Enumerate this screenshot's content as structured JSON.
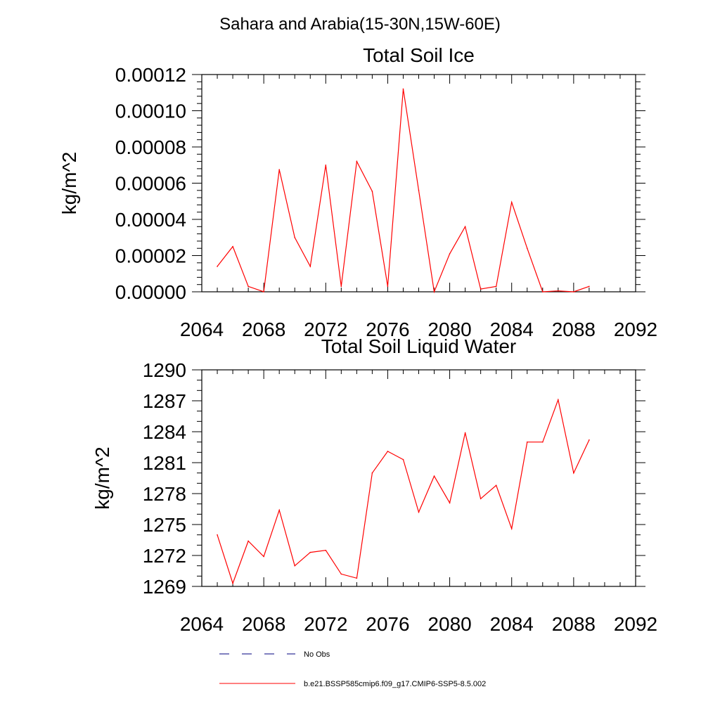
{
  "page_title": "Sahara and Arabia(15-30N,15W-60E)",
  "legend": [
    {
      "label": "No Obs",
      "color": "#00007f",
      "dash": "dashed"
    },
    {
      "label": "b.e21.BSSP585cmip6.f09_g17.CMIP6-SSP5-8.5.002",
      "color": "#ff0000",
      "dash": "solid"
    }
  ],
  "chart_data": [
    {
      "type": "line",
      "title": "Total Soil Ice",
      "xlabel": "",
      "ylabel": "kg/m^2",
      "xlim": [
        2064,
        2092
      ],
      "ylim": [
        0,
        0.00012
      ],
      "xticks": [
        2064,
        2068,
        2072,
        2076,
        2080,
        2084,
        2088,
        2092
      ],
      "xtick_labels": [
        "2064",
        "2068",
        "2072",
        "2076",
        "2080",
        "2084",
        "2088",
        "2092"
      ],
      "yticks": [
        0,
        2e-05,
        4e-05,
        6e-05,
        8e-05,
        0.0001,
        0.00012
      ],
      "ytick_labels": [
        "0.00000",
        "0.00002",
        "0.00004",
        "0.00006",
        "0.00008",
        "0.00010",
        "0.00012"
      ],
      "x_minor_step": 1,
      "y_minor_step": 4e-06,
      "grid": false,
      "series": [
        {
          "name": "b.e21.BSSP585cmip6.f09_g17.CMIP6-SSP5-8.5.002",
          "color": "#ff0000",
          "x": [
            2065,
            2066,
            2067,
            2068,
            2069,
            2070,
            2071,
            2072,
            2073,
            2074,
            2075,
            2076,
            2077,
            2078,
            2079,
            2080,
            2081,
            2082,
            2083,
            2084,
            2085,
            2086,
            2087,
            2088,
            2089
          ],
          "y": [
            1.4e-05,
            2.5e-05,
            3e-06,
            0.0,
            6.75e-05,
            3e-05,
            1.4e-05,
            7e-05,
            3e-06,
            7.2e-05,
            5.55e-05,
            3e-06,
            0.000112,
            5.6e-05,
            0.0,
            2.1e-05,
            3.6e-05,
            1.5e-06,
            3e-06,
            4.95e-05,
            2.4e-05,
            0.0,
            5e-07,
            0.0,
            3e-06
          ]
        }
      ]
    },
    {
      "type": "line",
      "title": "Total Soil Liquid Water",
      "xlabel": "",
      "ylabel": "kg/m^2",
      "xlim": [
        2064,
        2092
      ],
      "ylim": [
        1269,
        1290
      ],
      "xticks": [
        2064,
        2068,
        2072,
        2076,
        2080,
        2084,
        2088,
        2092
      ],
      "xtick_labels": [
        "2064",
        "2068",
        "2072",
        "2076",
        "2080",
        "2084",
        "2088",
        "2092"
      ],
      "yticks": [
        1269,
        1272,
        1275,
        1278,
        1281,
        1284,
        1287,
        1290
      ],
      "ytick_labels": [
        "1269",
        "1272",
        "1275",
        "1278",
        "1281",
        "1284",
        "1287",
        "1290"
      ],
      "x_minor_step": 1,
      "y_minor_step": 1,
      "grid": false,
      "series": [
        {
          "name": "b.e21.BSSP585cmip6.f09_g17.CMIP6-SSP5-8.5.002",
          "color": "#ff0000",
          "x": [
            2065,
            2066,
            2067,
            2068,
            2069,
            2070,
            2071,
            2072,
            2073,
            2074,
            2075,
            2076,
            2077,
            2078,
            2079,
            2080,
            2081,
            2082,
            2083,
            2084,
            2085,
            2086,
            2087,
            2088,
            2089
          ],
          "y": [
            1274.0,
            1269.3,
            1273.4,
            1271.9,
            1276.4,
            1271.0,
            1272.3,
            1272.5,
            1270.2,
            1269.8,
            1280.0,
            1282.1,
            1281.3,
            1276.2,
            1279.7,
            1277.1,
            1283.9,
            1277.5,
            1278.8,
            1274.6,
            1283.0,
            1283.0,
            1287.1,
            1280.0,
            1283.2
          ]
        }
      ]
    }
  ]
}
